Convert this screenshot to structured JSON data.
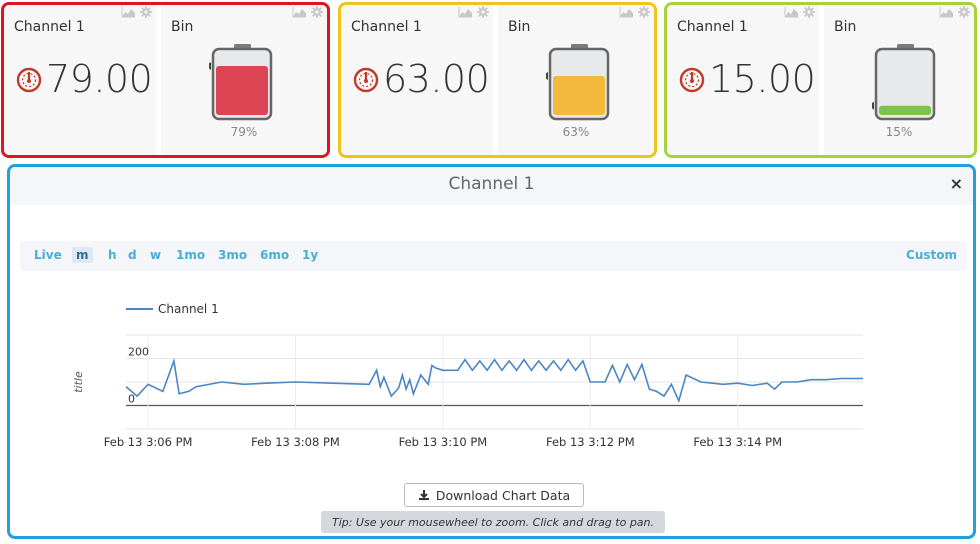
{
  "groups": [
    {
      "border_color": "#e0141e",
      "gauge": {
        "title": "Channel 1",
        "value": "79.00"
      },
      "battery": {
        "title": "Bin",
        "percent_label": "79%",
        "level": 0.79,
        "fill_color": "#dc4453"
      }
    },
    {
      "border_color": "#f0c419",
      "gauge": {
        "title": "Channel 1",
        "value": "63.00"
      },
      "battery": {
        "title": "Bin",
        "percent_label": "63%",
        "level": 0.63,
        "fill_color": "#f3b93c"
      }
    },
    {
      "border_color": "#a8d23a",
      "gauge": {
        "title": "Channel 1",
        "value": "15.00"
      },
      "battery": {
        "title": "Bin",
        "percent_label": "15%",
        "level": 0.15,
        "fill_color": "#7fc249"
      }
    }
  ],
  "panel": {
    "border_color": "#1fa1dc",
    "title": "Channel 1",
    "close_label": "×",
    "range_buttons": [
      "Live",
      "m",
      "h",
      "d",
      "w",
      "1mo",
      "3mo",
      "6mo",
      "1y"
    ],
    "active_range": "m",
    "custom_label": "Custom",
    "download_label": "Download Chart Data",
    "tip": "Tip: Use your mousewheel to zoom. Click and drag to pan."
  },
  "chart_data": {
    "type": "line",
    "title": "",
    "ylabel": "title",
    "xlabel": "",
    "legend": "top-left",
    "y_ticks": [
      0,
      200
    ],
    "ylim": [
      -100,
      300
    ],
    "x_ticks": [
      "Feb 13 3:06 PM",
      "Feb 13 3:08 PM",
      "Feb 13 3:10 PM",
      "Feb 13 3:12 PM",
      "Feb 13 3:14 PM"
    ],
    "x_tick_minutes": [
      0,
      2,
      4,
      6,
      8
    ],
    "xlim_minutes": [
      -0.3,
      9.7
    ],
    "series": [
      {
        "name": "Channel 1",
        "color": "#4a86c6",
        "x": [
          -0.3,
          -0.15,
          0.0,
          0.2,
          0.35,
          0.42,
          0.55,
          0.65,
          1.0,
          1.3,
          1.6,
          2.0,
          2.5,
          3.0,
          3.1,
          3.15,
          3.2,
          3.3,
          3.4,
          3.45,
          3.5,
          3.55,
          3.6,
          3.7,
          3.8,
          3.85,
          3.9,
          4.0,
          4.1,
          4.2,
          4.3,
          4.4,
          4.5,
          4.6,
          4.7,
          4.8,
          4.9,
          5.0,
          5.1,
          5.2,
          5.3,
          5.4,
          5.5,
          5.6,
          5.7,
          5.8,
          5.9,
          6.0,
          6.1,
          6.2,
          6.3,
          6.4,
          6.5,
          6.6,
          6.7,
          6.8,
          6.9,
          7.0,
          7.1,
          7.2,
          7.3,
          7.5,
          7.8,
          8.0,
          8.2,
          8.4,
          8.5,
          8.6,
          8.8,
          9.0,
          9.2,
          9.4,
          9.7
        ],
        "y": [
          80,
          40,
          90,
          60,
          190,
          50,
          60,
          80,
          100,
          90,
          95,
          100,
          95,
          90,
          150,
          80,
          120,
          40,
          75,
          130,
          70,
          110,
          50,
          130,
          90,
          170,
          160,
          150,
          150,
          150,
          195,
          150,
          190,
          150,
          195,
          150,
          190,
          150,
          195,
          150,
          190,
          150,
          190,
          150,
          195,
          150,
          190,
          100,
          100,
          100,
          170,
          100,
          175,
          110,
          175,
          70,
          60,
          40,
          90,
          20,
          130,
          100,
          90,
          95,
          85,
          95,
          70,
          100,
          100,
          110,
          110,
          115,
          115
        ]
      }
    ]
  }
}
